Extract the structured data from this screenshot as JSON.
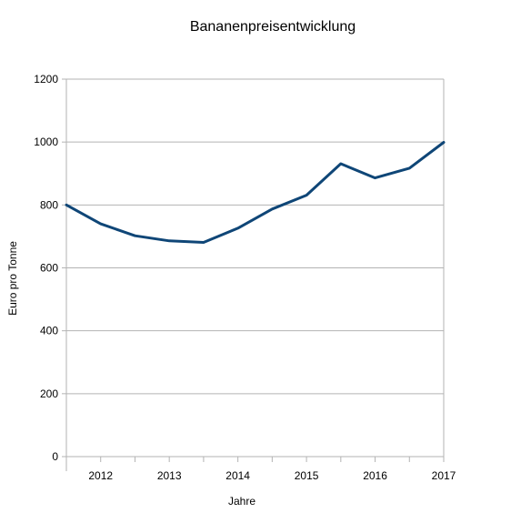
{
  "chart_data": {
    "type": "line",
    "title": "Bananenpreisentwicklung",
    "xlabel": "Jahre",
    "ylabel": "Euro pro Tonne",
    "ylim": [
      0,
      1200
    ],
    "yticks": [
      "0",
      "200",
      "400",
      "600",
      "800",
      "1000",
      "1200"
    ],
    "xlim": [
      2011.5,
      2017
    ],
    "xticks": [
      "2012",
      "2013",
      "2014",
      "2015",
      "2016",
      "2017"
    ],
    "grid": true,
    "line_color": "#0f4677",
    "series": [
      {
        "x": [
          2011.5,
          2012.0,
          2012.5,
          2013.0,
          2013.5,
          2014.0,
          2014.5,
          2015.0,
          2015.5,
          2016.0,
          2016.5,
          2017.0
        ],
        "values": [
          800,
          740,
          702,
          686,
          681,
          726,
          787,
          831,
          931,
          886,
          917,
          999
        ]
      }
    ]
  }
}
